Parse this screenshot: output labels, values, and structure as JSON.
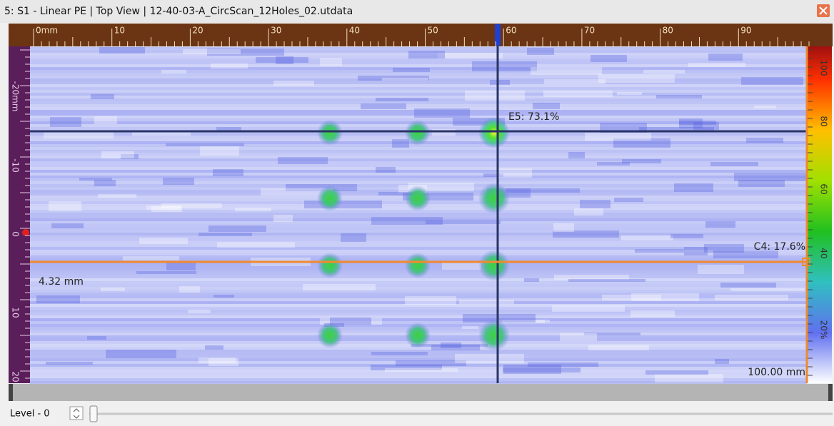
{
  "window": {
    "title": "5: S1 - Linear PE | Top View | 12-40-03-A_CircScan_12Holes_02.utdata"
  },
  "top_ruler": {
    "labels": [
      "0mm",
      "10",
      "20",
      "30",
      "40",
      "50",
      "60",
      "70",
      "80",
      "90"
    ]
  },
  "left_ruler": {
    "labels": [
      "-20mm",
      "-10",
      "0",
      "10",
      "20"
    ]
  },
  "color_scale": {
    "labels": [
      "100",
      "80",
      "60",
      "40",
      "20%"
    ]
  },
  "cursors": {
    "e_label": "E5: 73.1%",
    "c_label": "C4: 17.6%",
    "offset_label": "4.32 mm",
    "length_label": "100.00 mm"
  },
  "toolbar": {
    "level_label": "Level - 0"
  }
}
